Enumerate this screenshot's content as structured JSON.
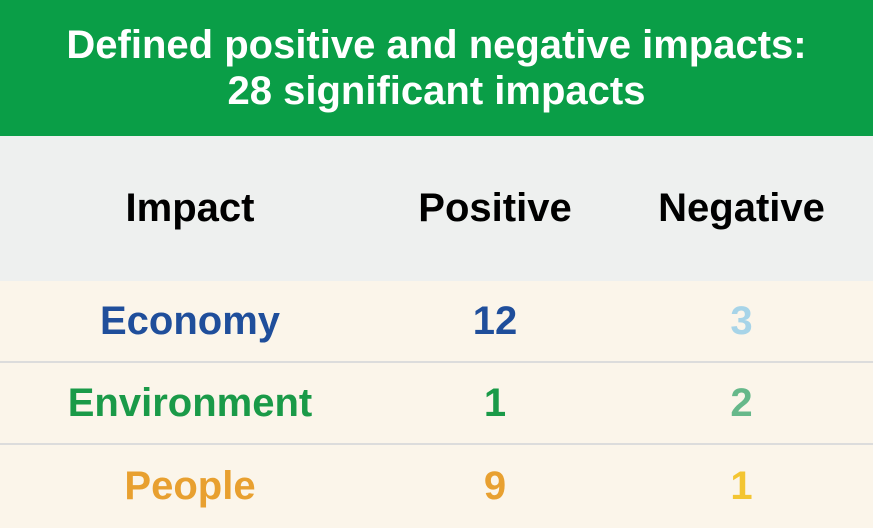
{
  "banner": {
    "line1": "Defined positive and negative impacts:",
    "line2": "28 significant impacts",
    "color": "#0a9e47"
  },
  "table": {
    "headers": [
      "Impact",
      "Positive",
      "Negative"
    ],
    "rows": [
      {
        "impact": "Economy",
        "positive": "12",
        "negative": "3",
        "label_color": "#1f4e9b",
        "pos_color": "#1f4e9b",
        "neg_color": "#a7d4e8"
      },
      {
        "impact": "Environment",
        "positive": "1",
        "negative": "2",
        "label_color": "#1a9a48",
        "pos_color": "#1a9a48",
        "neg_color": "#66b88a"
      },
      {
        "impact": "People",
        "positive": "9",
        "negative": "1",
        "label_color": "#e8a030",
        "pos_color": "#e8a030",
        "neg_color": "#f3c532"
      }
    ]
  }
}
